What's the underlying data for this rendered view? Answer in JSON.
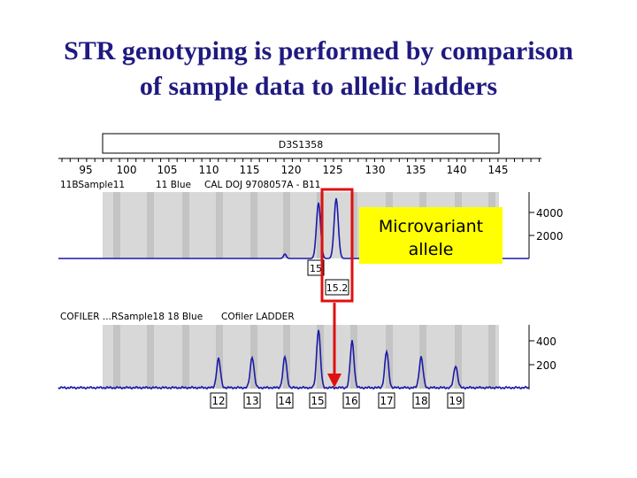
{
  "title": {
    "line1": "STR genotyping is performed by comparison",
    "line2": "of sample data to allelic ladders"
  },
  "marker": {
    "locus": "D3S1358"
  },
  "scale": {
    "ticks": [
      "95",
      "100",
      "105",
      "110",
      "115",
      "120",
      "125",
      "130",
      "135",
      "140",
      "145"
    ]
  },
  "sample_panel": {
    "header": [
      "11BSample11",
      "11 Blue",
      "CAL DOJ 9708057A - B11"
    ],
    "y_ticks": [
      "4000",
      "2000"
    ],
    "allele_calls": [
      "15",
      "15.2"
    ]
  },
  "ladder_panel": {
    "header": [
      "COFILER ...RSample18 18 Blue",
      "COfiler LADDER"
    ],
    "y_ticks": [
      "400",
      "200"
    ],
    "allele_labels": [
      "12",
      "13",
      "14",
      "15",
      "16",
      "17",
      "18",
      "19"
    ]
  },
  "callout": {
    "line1": "Microvariant",
    "line2": "allele"
  },
  "colors": {
    "title": "#1f1a80",
    "trace": "#1a1aa8",
    "callout_fill": "#ffff00",
    "highlight": "#e01010",
    "bin_band": "#c8c8c8",
    "panel_bg": "#d8d8d8"
  }
}
